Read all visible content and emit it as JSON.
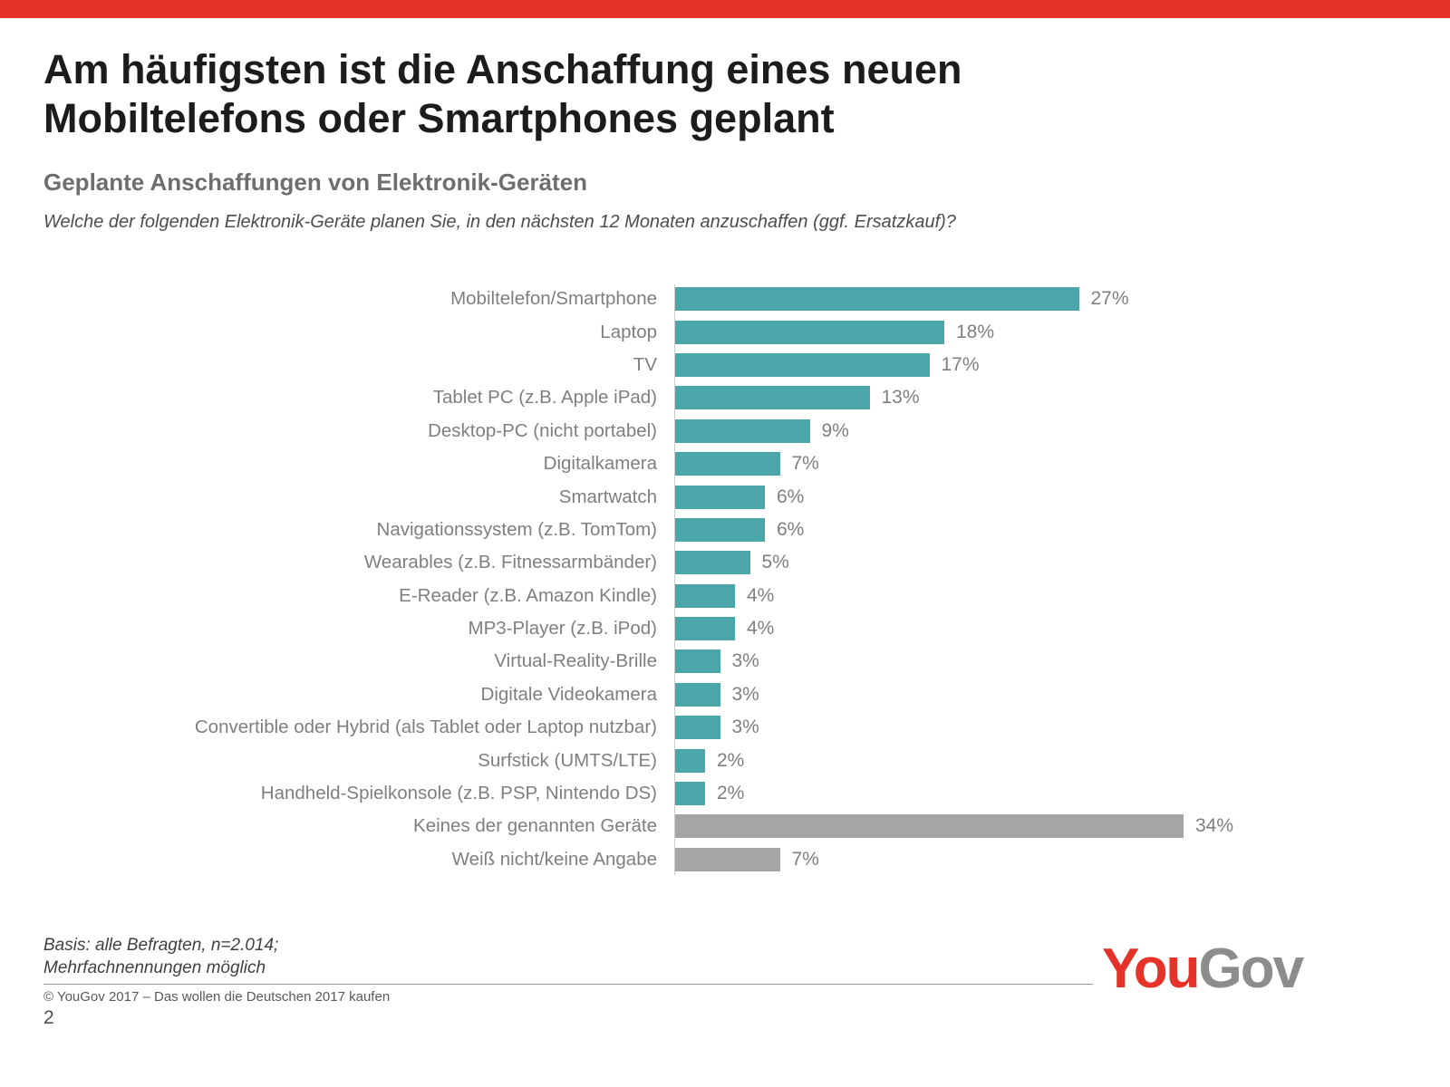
{
  "slide": {
    "title_line1": "Am häufigsten ist die Anschaffung eines neuen",
    "title_line2": "Mobiltelefons oder Smartphones geplant",
    "subtitle": "Geplante Anschaffungen von Elektronik-Geräten",
    "question": "Welche der folgenden Elektronik-Geräte planen Sie, in den nächsten 12 Monaten anzuschaffen (ggf. Ersatzkauf)?",
    "basis_line1": "Basis: alle Befragten, n=2.014;",
    "basis_line2": "Mehrfachnennungen möglich",
    "copyright": "©  YouGov 2017 – Das wollen die Deutschen 2017 kaufen",
    "page_number": "2",
    "logo_part1": "You",
    "logo_part2": "Gov"
  },
  "colors": {
    "accent_red": "#E63329",
    "bar_teal": "#4BA6A9",
    "bar_gray": "#A5A5A5",
    "logo_gray": "#8C8C8C",
    "label_gray": "#7F7F7F"
  },
  "chart_data": {
    "type": "bar",
    "orientation": "horizontal",
    "title": "Geplante Anschaffungen von Elektronik-Geräten",
    "xlabel": "",
    "ylabel": "",
    "unit": "%",
    "xlim": [
      0,
      40
    ],
    "grid": false,
    "legend": false,
    "categories": [
      "Mobiltelefon/Smartphone",
      "Laptop",
      "TV",
      "Tablet PC (z.B. Apple iPad)",
      "Desktop-PC (nicht portabel)",
      "Digitalkamera",
      "Smartwatch",
      "Navigationssystem (z.B. TomTom)",
      "Wearables (z.B. Fitnessarmbänder)",
      "E-Reader (z.B. Amazon Kindle)",
      "MP3-Player (z.B. iPod)",
      "Virtual-Reality-Brille",
      "Digitale Videokamera",
      "Convertible oder Hybrid (als Tablet oder Laptop nutzbar)",
      "Surfstick (UMTS/LTE)",
      "Handheld-Spielkonsole (z.B. PSP, Nintendo DS)",
      "Keines der genannten Geräte",
      "Weiß nicht/keine Angabe"
    ],
    "values": [
      27,
      18,
      17,
      13,
      9,
      7,
      6,
      6,
      5,
      4,
      4,
      3,
      3,
      3,
      2,
      2,
      34,
      7
    ],
    "bar_colors": [
      "#4BA6A9",
      "#4BA6A9",
      "#4BA6A9",
      "#4BA6A9",
      "#4BA6A9",
      "#4BA6A9",
      "#4BA6A9",
      "#4BA6A9",
      "#4BA6A9",
      "#4BA6A9",
      "#4BA6A9",
      "#4BA6A9",
      "#4BA6A9",
      "#4BA6A9",
      "#4BA6A9",
      "#4BA6A9",
      "#A5A5A5",
      "#A5A5A5"
    ]
  }
}
